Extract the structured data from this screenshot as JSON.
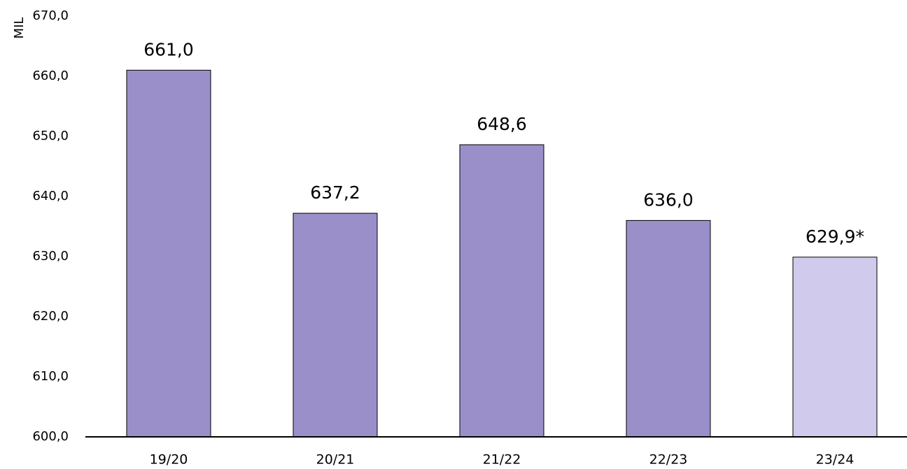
{
  "chart_data": {
    "type": "bar",
    "y_axis_label": "MIL",
    "categories": [
      "19/20",
      "20/21",
      "21/22",
      "22/23",
      "23/24"
    ],
    "values": [
      661.0,
      637.2,
      648.6,
      636.0,
      629.9
    ],
    "value_labels": [
      "661,0",
      "637,2",
      "648,6",
      "636,0",
      "629,9*"
    ],
    "colors": [
      "#9b8fca",
      "#9b8fca",
      "#9b8fca",
      "#9b8fca",
      "#d0cbec"
    ],
    "ylim": [
      600,
      670
    ],
    "yticks": [
      {
        "value": 600,
        "label": "600,0"
      },
      {
        "value": 610,
        "label": "610,0"
      },
      {
        "value": 620,
        "label": "620,0"
      },
      {
        "value": 630,
        "label": "630,0"
      },
      {
        "value": 640,
        "label": "640,0"
      },
      {
        "value": 650,
        "label": "650,0"
      },
      {
        "value": 660,
        "label": "660,0"
      },
      {
        "value": 670,
        "label": "670,0"
      }
    ],
    "grid": false
  }
}
